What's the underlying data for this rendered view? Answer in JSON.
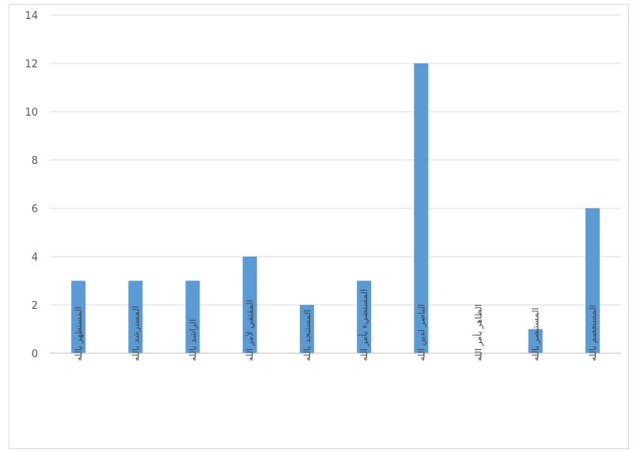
{
  "chart_data": {
    "type": "bar",
    "title": "",
    "xlabel": "",
    "ylabel": "",
    "ylim": [
      0,
      14
    ],
    "yticks": [
      0,
      2,
      4,
      6,
      8,
      10,
      12,
      14
    ],
    "grid": true,
    "legend": "none",
    "bar_color": "#5b9bd5",
    "categories": [
      "المستظهر بالله",
      "المسترشد بالله",
      "الراشد بالله",
      "المقتفي لأمر الله",
      "المستنجد بالله",
      "المستضيء بأمر الله",
      "الناصر لدين الله",
      "الظاهر بأمر الله",
      "المستنصر بالله",
      "المستعصم بالله"
    ],
    "values": [
      3,
      3,
      3,
      4,
      2,
      3,
      12,
      0,
      1,
      6
    ]
  }
}
